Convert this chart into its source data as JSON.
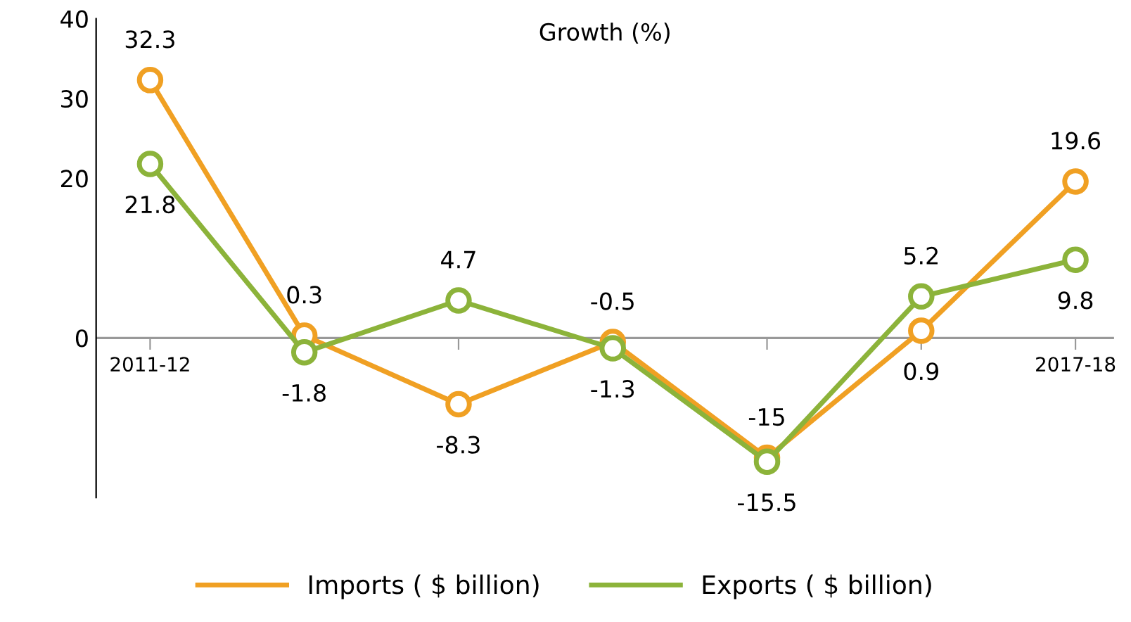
{
  "chart_data": {
    "type": "line",
    "title": "Growth (%)",
    "categories": [
      "2011-12",
      null,
      null,
      null,
      null,
      null,
      "2017-18"
    ],
    "series": [
      {
        "name": "Imports ( $ billion)",
        "color": "#f0a023",
        "values": [
          32.3,
          0.3,
          -8.3,
          -0.5,
          -15,
          0.9,
          19.6
        ]
      },
      {
        "name": "Exports ( $ billion)",
        "color": "#8cb33a",
        "values": [
          21.8,
          -1.8,
          4.7,
          -1.3,
          -15.5,
          5.2,
          9.8
        ]
      }
    ],
    "ylim": [
      -20,
      40
    ],
    "yticks": [
      0,
      20,
      30,
      40
    ],
    "grid": false,
    "legend": "bottom",
    "marker": "circle",
    "line_style": "solid",
    "data_labels": true
  }
}
